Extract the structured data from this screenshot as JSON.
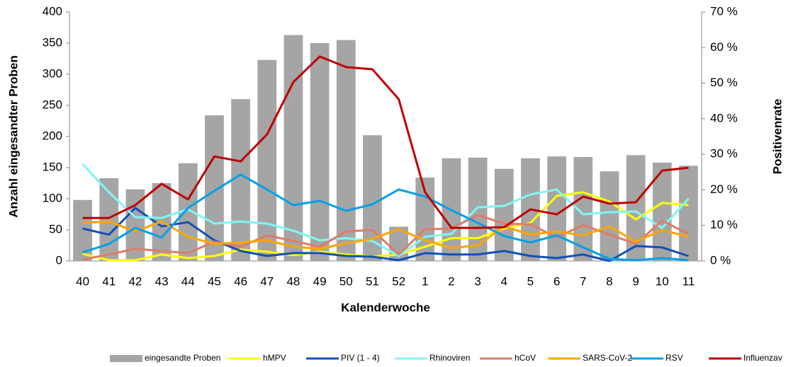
{
  "chart_data": {
    "type": "bar",
    "x_label": "Kalenderwoche",
    "y_label": "Anzahl eingesandter Proben",
    "y2_label": "Positivenrate",
    "categories": [
      "40",
      "41",
      "42",
      "43",
      "44",
      "45",
      "46",
      "47",
      "48",
      "49",
      "50",
      "51",
      "52",
      "1",
      "2",
      "3",
      "4",
      "5",
      "6",
      "7",
      "8",
      "9",
      "10",
      "11"
    ],
    "ylim": [
      0,
      400
    ],
    "yticks": [
      0,
      50,
      100,
      150,
      200,
      250,
      300,
      350,
      400
    ],
    "y2lim": [
      0,
      70
    ],
    "y2ticks": [
      {
        "value": 0,
        "label": "0 %"
      },
      {
        "value": 10,
        "label": "10 %"
      },
      {
        "value": 20,
        "label": "20 %"
      },
      {
        "value": 30,
        "label": "30 %"
      },
      {
        "value": 40,
        "label": "40 %"
      },
      {
        "value": 50,
        "label": "50 %"
      },
      {
        "value": 60,
        "label": "60 %"
      },
      {
        "value": 70,
        "label": "70 %"
      }
    ],
    "grid": false,
    "legend": "bottom",
    "series": [
      {
        "name": "eingesandte Proben",
        "type": "bar",
        "color": "#a5a5a5",
        "values": [
          98,
          133,
          115,
          125,
          157,
          234,
          260,
          323,
          363,
          350,
          355,
          202,
          55,
          134,
          165,
          166,
          148,
          165,
          168,
          167,
          144,
          170,
          158,
          153
        ]
      },
      {
        "name": "hMPV",
        "type": "line",
        "axis": "y2",
        "color": "#ffff00",
        "values": [
          2,
          0.2,
          0.2,
          1.8,
          0.8,
          1.4,
          3.2,
          2.6,
          1.6,
          2.6,
          1.8,
          1.2,
          1.8,
          4,
          6.4,
          6.4,
          9.1,
          10.7,
          18.3,
          19.3,
          16.7,
          11.7,
          16.3,
          15.7
        ]
      },
      {
        "name": "PIV (1 - 4)",
        "type": "line",
        "axis": "y2",
        "color": "#1150b8",
        "values": [
          9.1,
          7.4,
          14.9,
          9.7,
          10.9,
          5.8,
          2.8,
          1.4,
          2.2,
          2.2,
          1.4,
          1.2,
          0.2,
          2.2,
          1.8,
          1.8,
          2.8,
          1.4,
          0.8,
          1.8,
          0,
          4.2,
          3.8,
          1.4
        ]
      },
      {
        "name": "Rhinoviren",
        "type": "line",
        "axis": "y2",
        "color": "#80f6f8",
        "values": [
          27.2,
          19.3,
          12.3,
          12.1,
          14.5,
          10.5,
          11.1,
          10.5,
          8.5,
          5.8,
          6.4,
          5.6,
          1.4,
          6.8,
          7.6,
          15.1,
          15.5,
          18.7,
          20.1,
          13.1,
          13.7,
          13.9,
          9.3,
          17.5
        ]
      },
      {
        "name": "hCoV",
        "type": "line",
        "axis": "y2",
        "color": "#e07b67",
        "values": [
          0.4,
          1.8,
          3.4,
          2.8,
          2.2,
          5.4,
          4,
          7.2,
          5.6,
          4,
          8.3,
          8.7,
          1.8,
          8.9,
          9.1,
          12.9,
          10.5,
          10.3,
          6.6,
          10.1,
          7.4,
          4.8,
          11.3,
          7.6
        ]
      },
      {
        "name": "SARS-CoV-2",
        "type": "line",
        "axis": "y2",
        "color": "#ffa500",
        "values": [
          10.7,
          11.1,
          8.3,
          11.1,
          6.8,
          4.8,
          5.2,
          5.8,
          4,
          3.4,
          5,
          6.2,
          8.9,
          5.8,
          3.6,
          4.4,
          9.7,
          7.4,
          8.3,
          7.2,
          9.7,
          5.4,
          8.7,
          6.8
        ]
      },
      {
        "name": "RSV",
        "type": "line",
        "axis": "y2",
        "color": "#00a0e9",
        "values": [
          2.4,
          4.8,
          9.3,
          6.6,
          14.9,
          19.7,
          24.3,
          20.1,
          15.7,
          16.9,
          14.1,
          15.9,
          20.1,
          18.1,
          14.3,
          10.7,
          7,
          5.2,
          7.2,
          3.8,
          0.6,
          0.2,
          0.8,
          0.2
        ]
      },
      {
        "name": "Influenzav",
        "type": "line",
        "axis": "y2",
        "color": "#c00000",
        "values": [
          12.1,
          12.1,
          15.7,
          21.7,
          17.3,
          29.4,
          28,
          35.6,
          50.3,
          57.5,
          54.5,
          53.9,
          45.5,
          19.3,
          9.3,
          9.3,
          9.5,
          14.5,
          13.1,
          18.1,
          16.1,
          16.5,
          25.4,
          26.2
        ]
      }
    ]
  }
}
